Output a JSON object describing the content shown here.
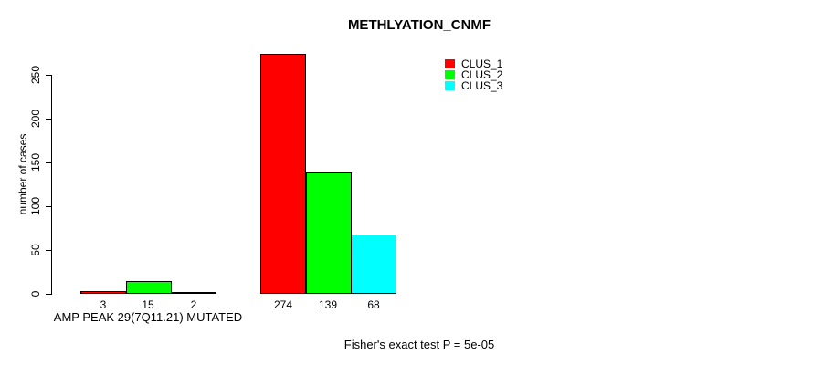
{
  "chart_data": {
    "type": "bar",
    "title": "METHLYATION_CNMF",
    "ylabel": "number of cases",
    "xlabel": "",
    "ylim": [
      0,
      250
    ],
    "yticks": [
      0,
      50,
      100,
      150,
      200,
      250
    ],
    "grid": false,
    "background": "#ffffff",
    "axis_color": "#000000",
    "legend_position": "top-right",
    "categories": [
      "AMP PEAK 29(7Q11.21) MUTATED",
      ""
    ],
    "series": [
      {
        "name": "CLUS_1",
        "color": "#ff0000",
        "values": [
          3,
          274
        ]
      },
      {
        "name": "CLUS_2",
        "color": "#00ff00",
        "values": [
          15,
          139
        ]
      },
      {
        "name": "CLUS_3",
        "color": "#00ffff",
        "values": [
          2,
          68
        ]
      }
    ],
    "bar_value_labels": [
      [
        "3",
        "15",
        "2"
      ],
      [
        "274",
        "139",
        "68"
      ]
    ],
    "annotation": "Fisher's exact test P = 5e-05"
  }
}
